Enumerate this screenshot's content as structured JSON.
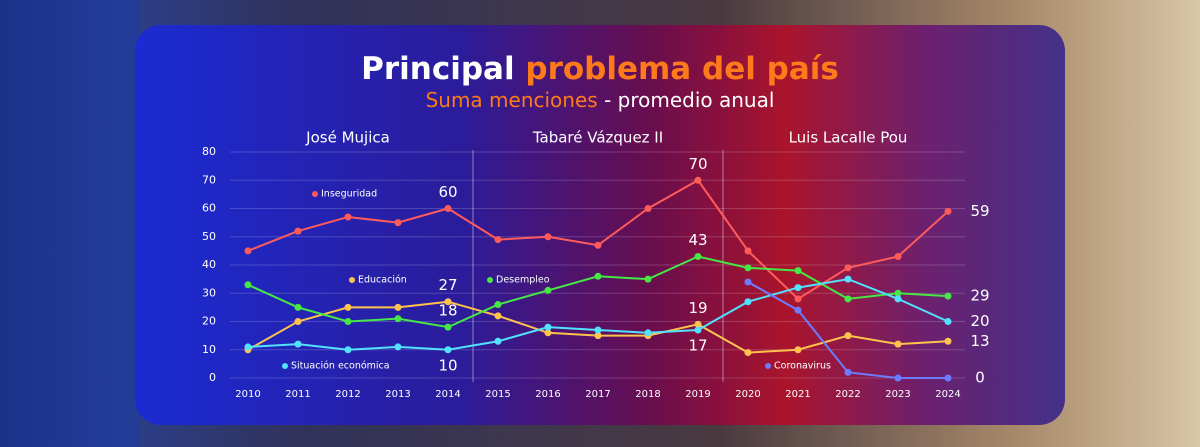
{
  "chart_data": {
    "type": "line",
    "title": "Principal",
    "title_accent": "problema del país",
    "subtitle_accent": "Suma menciones",
    "subtitle": "- promedio anual",
    "categories": [
      "2010",
      "2011",
      "2012",
      "2013",
      "2014",
      "2015",
      "2016",
      "2017",
      "2018",
      "2019",
      "2020",
      "2021",
      "2022",
      "2023",
      "2024"
    ],
    "periods": [
      {
        "name": "José Mujica",
        "span": [
          0,
          4
        ]
      },
      {
        "name": "Tabaré Vázquez II",
        "span": [
          5,
          9
        ]
      },
      {
        "name": "Luis Lacalle Pou",
        "span": [
          10,
          14
        ]
      }
    ],
    "ylim": [
      0,
      80
    ],
    "yticks": [
      0,
      10,
      20,
      30,
      40,
      50,
      60,
      70,
      80
    ],
    "grid": true,
    "series": [
      {
        "name": "Inseguridad",
        "color": "#ff5b5b",
        "label_indices": [
          4,
          9,
          14
        ],
        "values": [
          45,
          52,
          57,
          55,
          60,
          49,
          50,
          47,
          60,
          70,
          45,
          28,
          39,
          43,
          59
        ]
      },
      {
        "name": "Educación",
        "color": "#ffc24d",
        "label_indices": [
          4,
          9,
          14
        ],
        "values": [
          10,
          20,
          25,
          25,
          27,
          22,
          16,
          15,
          15,
          19,
          9,
          10,
          15,
          12,
          13
        ]
      },
      {
        "name": "Desempleo",
        "color": "#45e845",
        "label_indices": [
          4,
          9,
          14
        ],
        "values": [
          33,
          25,
          20,
          21,
          18,
          26,
          31,
          36,
          35,
          43,
          39,
          38,
          28,
          30,
          29
        ]
      },
      {
        "name": "Situación económica",
        "color": "#52e2ff",
        "label_indices": [
          4,
          9,
          14
        ],
        "values": [
          11,
          12,
          10,
          11,
          10,
          13,
          18,
          17,
          16,
          17,
          27,
          32,
          35,
          28,
          20
        ]
      },
      {
        "name": "Coronavirus",
        "color": "#6d7cff",
        "label_indices": [
          14
        ],
        "values": [
          null,
          null,
          null,
          null,
          null,
          null,
          null,
          null,
          null,
          null,
          34,
          24,
          2,
          0,
          0
        ]
      }
    ]
  }
}
